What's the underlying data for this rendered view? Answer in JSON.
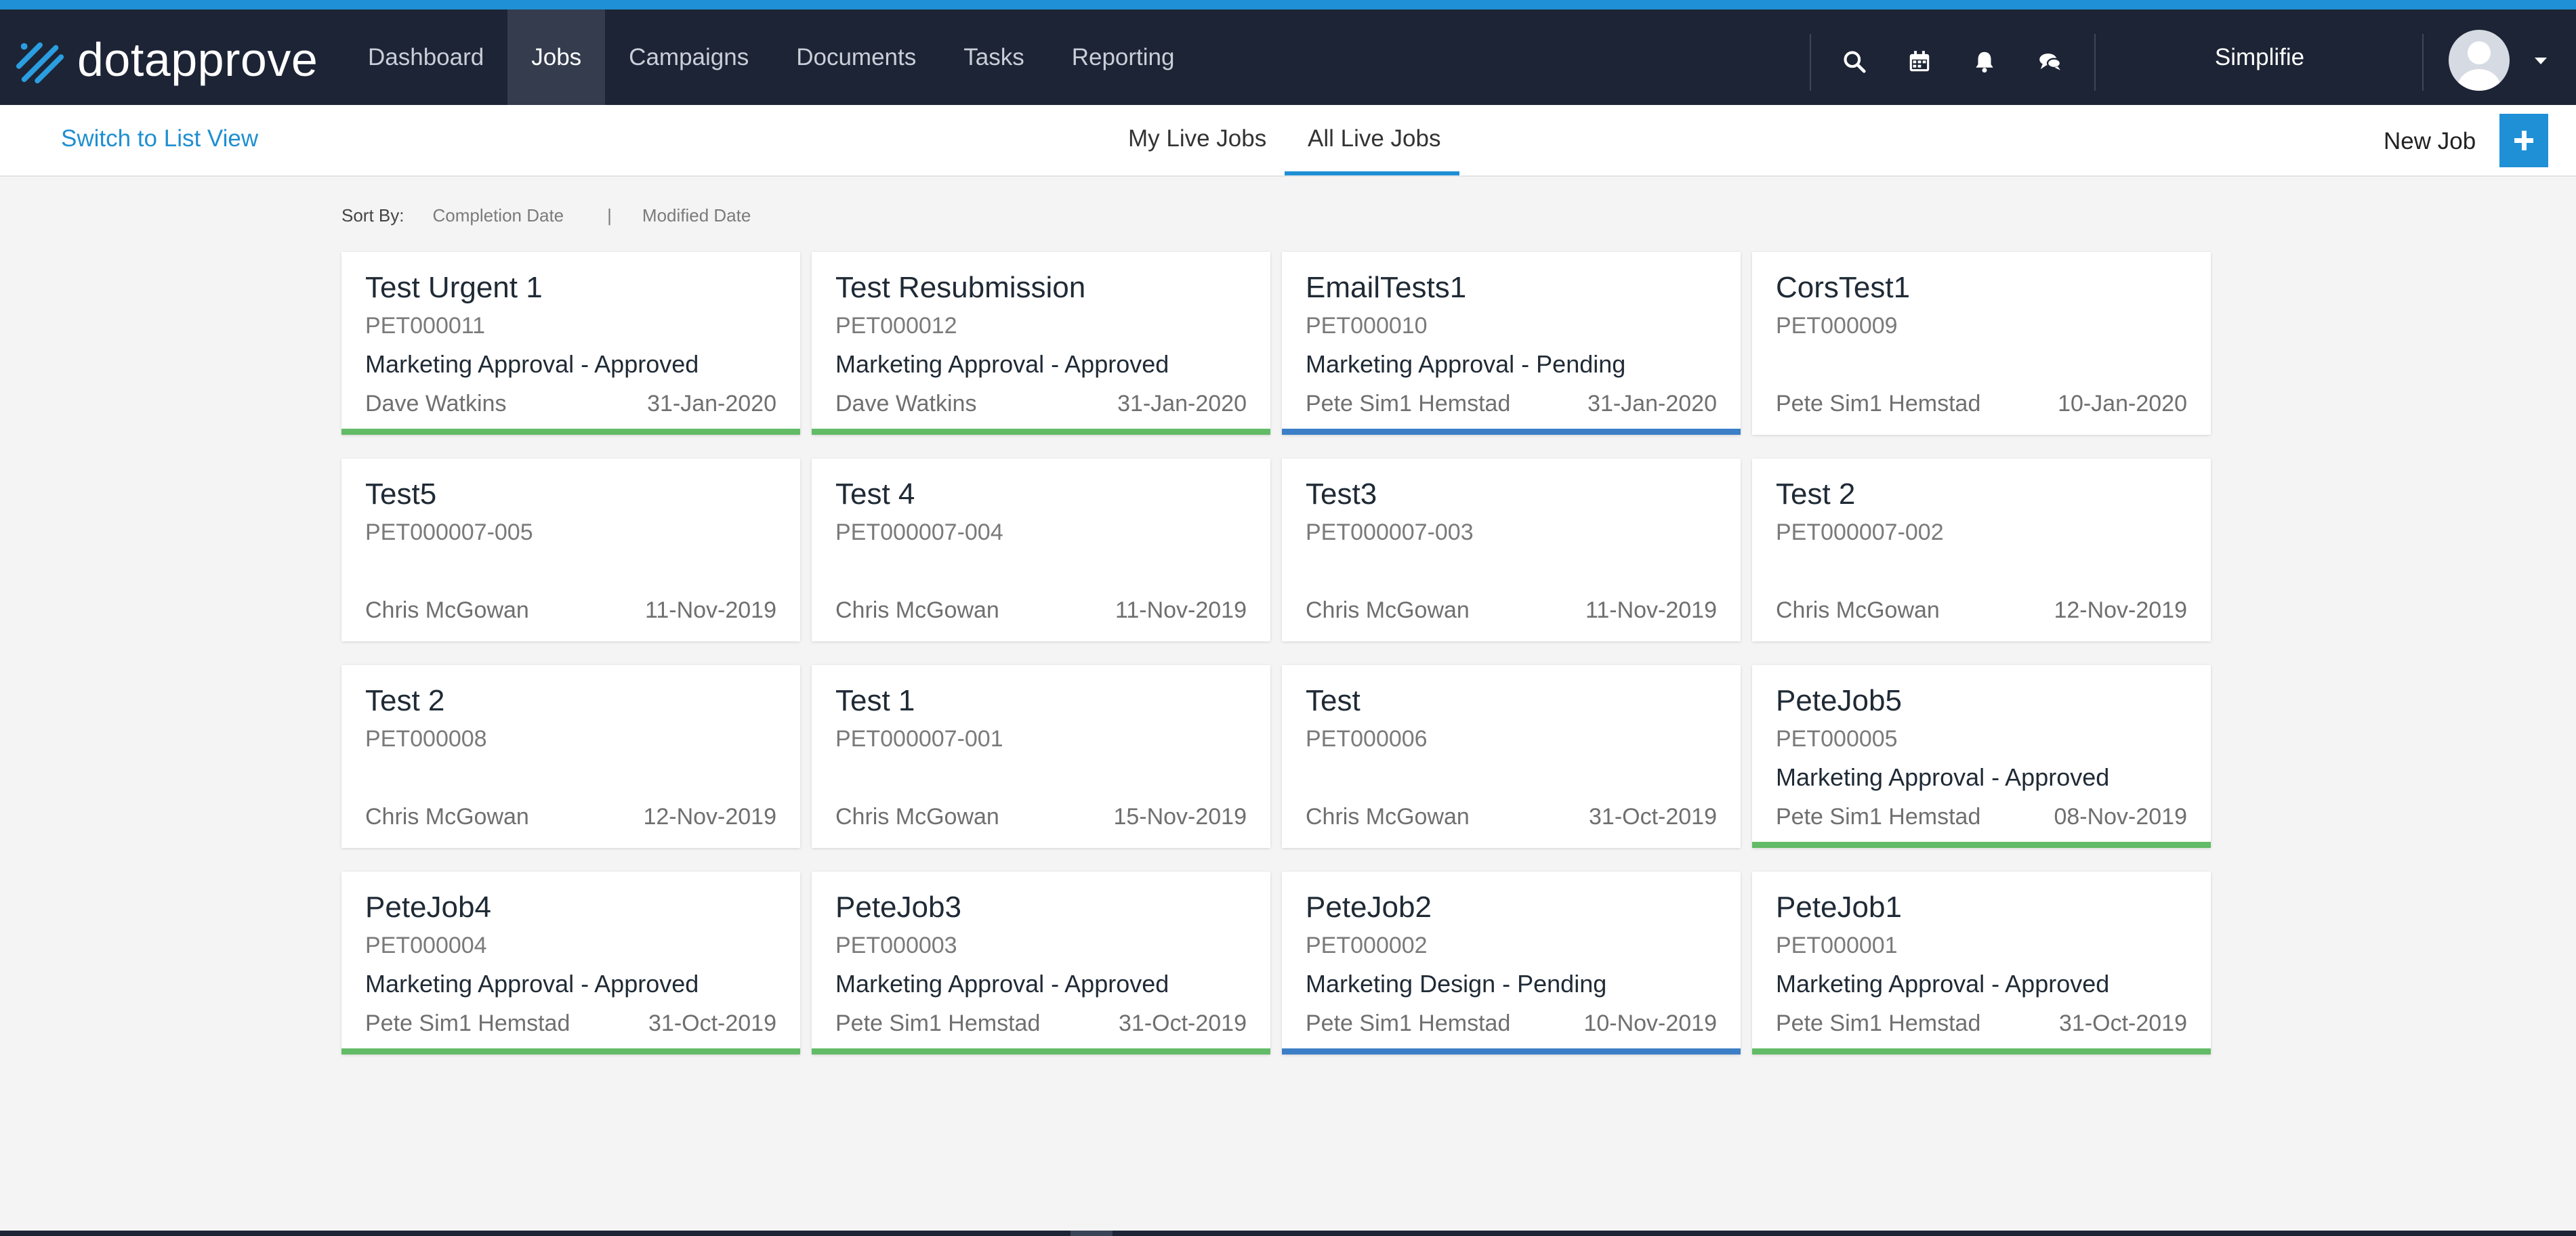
{
  "brand": {
    "logo_text": "dotapprove",
    "accent_color": "#1f90d6",
    "nav_bg": "#1d2435"
  },
  "nav": {
    "items": [
      {
        "label": "Dashboard"
      },
      {
        "label": "Jobs"
      },
      {
        "label": "Campaigns"
      },
      {
        "label": "Documents"
      },
      {
        "label": "Tasks"
      },
      {
        "label": "Reporting"
      }
    ],
    "active": "Jobs"
  },
  "topbar": {
    "icons": [
      "search-icon",
      "calendar-icon",
      "bell-icon",
      "chat-icon"
    ],
    "user_name": "Simplifie"
  },
  "subbar": {
    "switch_view_label": "Switch to List View",
    "tabs": [
      {
        "label": "My Live Jobs"
      },
      {
        "label": "All Live Jobs"
      }
    ],
    "active_tab": "All Live Jobs",
    "new_job_label": "New Job"
  },
  "sort": {
    "label": "Sort By:",
    "options": [
      "Completion Date",
      "Modified Date"
    ],
    "separator": "|"
  },
  "status_colors": {
    "approved": "#62bb66",
    "pending": "#3c7fc7"
  },
  "jobs": [
    {
      "title": "Test Urgent 1",
      "code": "PET000011",
      "status": "Marketing Approval - Approved",
      "state": "approved",
      "owner": "Dave Watkins",
      "date": "31-Jan-2020"
    },
    {
      "title": "Test Resubmission",
      "code": "PET000012",
      "status": "Marketing Approval - Approved",
      "state": "approved",
      "owner": "Dave Watkins",
      "date": "31-Jan-2020"
    },
    {
      "title": "EmailTests1",
      "code": "PET000010",
      "status": "Marketing Approval - Pending",
      "state": "pending",
      "owner": "Pete Sim1 Hemstad",
      "date": "31-Jan-2020"
    },
    {
      "title": "CorsTest1",
      "code": "PET000009",
      "status": "",
      "state": "none",
      "owner": "Pete Sim1 Hemstad",
      "date": "10-Jan-2020"
    },
    {
      "title": "Test5",
      "code": "PET000007-005",
      "status": "",
      "state": "none",
      "owner": "Chris McGowan",
      "date": "11-Nov-2019"
    },
    {
      "title": "Test 4",
      "code": "PET000007-004",
      "status": "",
      "state": "none",
      "owner": "Chris McGowan",
      "date": "11-Nov-2019"
    },
    {
      "title": "Test3",
      "code": "PET000007-003",
      "status": "",
      "state": "none",
      "owner": "Chris McGowan",
      "date": "11-Nov-2019"
    },
    {
      "title": "Test 2",
      "code": "PET000007-002",
      "status": "",
      "state": "none",
      "owner": "Chris McGowan",
      "date": "12-Nov-2019"
    },
    {
      "title": "Test 2",
      "code": "PET000008",
      "status": "",
      "state": "none",
      "owner": "Chris McGowan",
      "date": "12-Nov-2019"
    },
    {
      "title": "Test 1",
      "code": "PET000007-001",
      "status": "",
      "state": "none",
      "owner": "Chris McGowan",
      "date": "15-Nov-2019"
    },
    {
      "title": "Test",
      "code": "PET000006",
      "status": "",
      "state": "none",
      "owner": "Chris McGowan",
      "date": "31-Oct-2019"
    },
    {
      "title": "PeteJob5",
      "code": "PET000005",
      "status": "Marketing Approval - Approved",
      "state": "approved",
      "owner": "Pete Sim1 Hemstad",
      "date": "08-Nov-2019"
    },
    {
      "title": "PeteJob4",
      "code": "PET000004",
      "status": "Marketing Approval - Approved",
      "state": "approved",
      "owner": "Pete Sim1 Hemstad",
      "date": "31-Oct-2019"
    },
    {
      "title": "PeteJob3",
      "code": "PET000003",
      "status": "Marketing Approval - Approved",
      "state": "approved",
      "owner": "Pete Sim1 Hemstad",
      "date": "31-Oct-2019"
    },
    {
      "title": "PeteJob2",
      "code": "PET000002",
      "status": "Marketing Design - Pending",
      "state": "pending",
      "owner": "Pete Sim1 Hemstad",
      "date": "10-Nov-2019"
    },
    {
      "title": "PeteJob1",
      "code": "PET000001",
      "status": "Marketing Approval - Approved",
      "state": "approved",
      "owner": "Pete Sim1 Hemstad",
      "date": "31-Oct-2019"
    }
  ]
}
